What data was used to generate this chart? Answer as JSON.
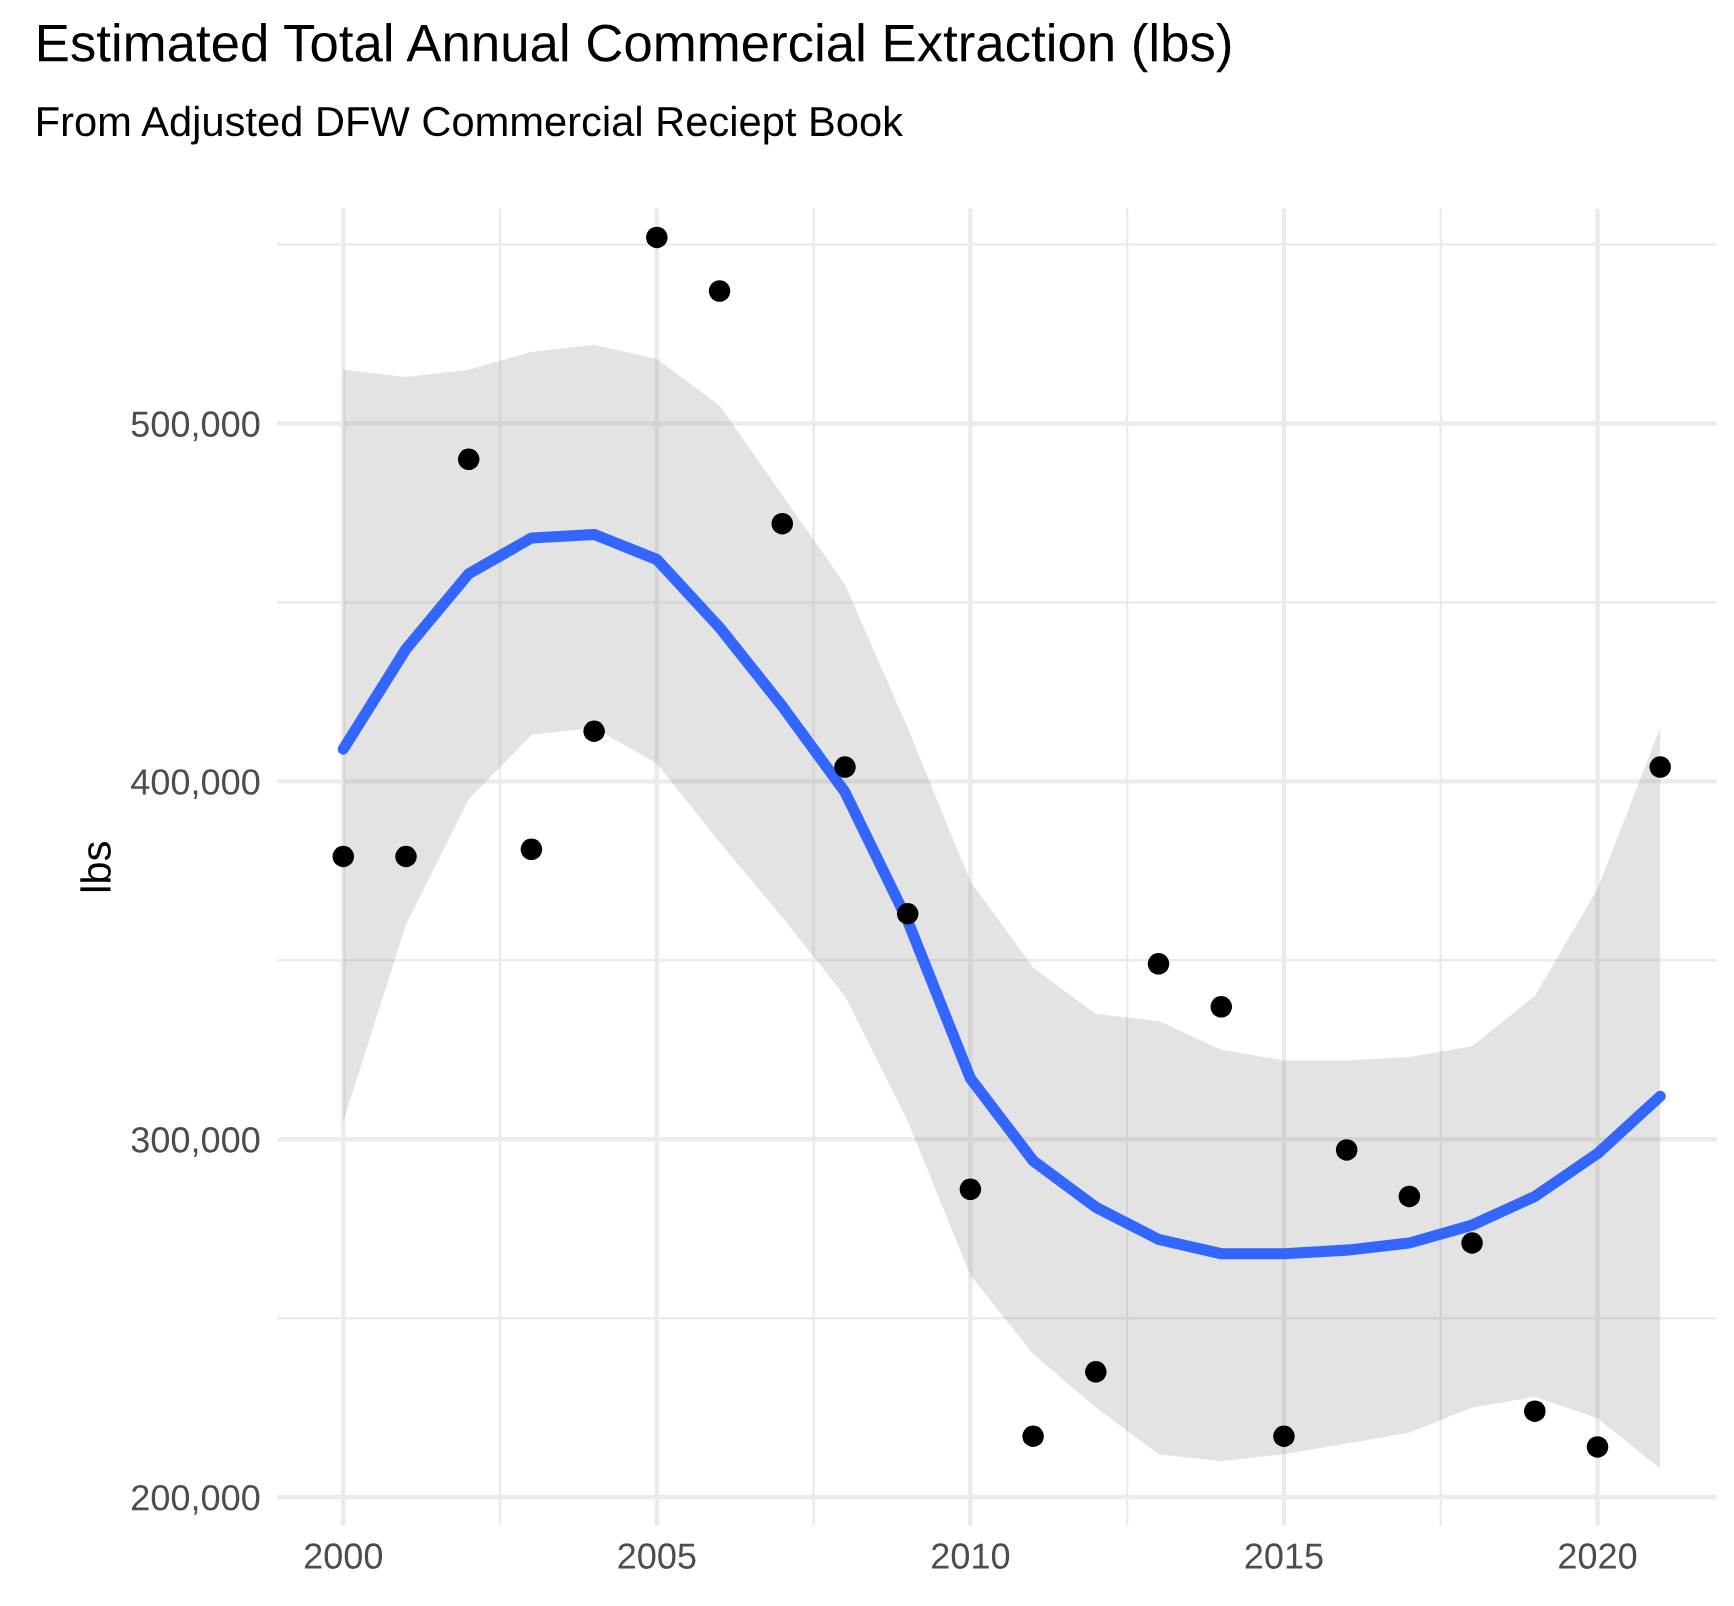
{
  "chart_data": {
    "type": "scatter",
    "title": "Estimated Total Annual Commercial Extraction (lbs)",
    "subtitle": "From Adjusted DFW Commercial Reciept Book",
    "ylabel": "lbs",
    "x": [
      2000,
      2001,
      2002,
      2003,
      2004,
      2005,
      2006,
      2007,
      2008,
      2009,
      2010,
      2011,
      2012,
      2013,
      2014,
      2015,
      2016,
      2017,
      2018,
      2019,
      2020,
      2021
    ],
    "series": [
      {
        "marker": "circle",
        "color": "#000000",
        "values": [
          379000,
          379000,
          490000,
          381000,
          414000,
          552000,
          537000,
          472000,
          404000,
          363000,
          286000,
          217000,
          235000,
          349000,
          337000,
          217000,
          297000,
          284000,
          271000,
          224000,
          214000,
          404000
        ]
      },
      {
        "type": "line",
        "color": "#3366ff",
        "values": [
          409000,
          437000,
          458000,
          468000,
          469000,
          462000,
          443000,
          421000,
          397000,
          361000,
          317000,
          294000,
          281000,
          272000,
          268000,
          268000,
          269000,
          271000,
          276000,
          284000,
          296000,
          312000
        ],
        "lower": [
          305000,
          360000,
          395000,
          413000,
          415000,
          405000,
          383000,
          362000,
          340000,
          305000,
          262000,
          240000,
          225000,
          212000,
          210000,
          212000,
          215000,
          218000,
          225000,
          228000,
          222000,
          208000
        ],
        "upper": [
          515000,
          513000,
          515000,
          520000,
          522000,
          518000,
          505000,
          480000,
          455000,
          415000,
          372000,
          348000,
          335000,
          333000,
          325000,
          322000,
          322000,
          323000,
          326000,
          340000,
          370000,
          415000
        ]
      }
    ],
    "xlim": [
      1998.95,
      2021.9
    ],
    "xticks": [
      2000,
      2005,
      2010,
      2015,
      2020
    ],
    "ylim": [
      192000,
      560000
    ],
    "yticks": [
      {
        "value": 200000,
        "label": "200,000"
      },
      {
        "value": 300000,
        "label": "300,000"
      },
      {
        "value": 400000,
        "label": "400,000"
      },
      {
        "value": 500000,
        "label": "500,000"
      }
    ],
    "grid": true
  }
}
